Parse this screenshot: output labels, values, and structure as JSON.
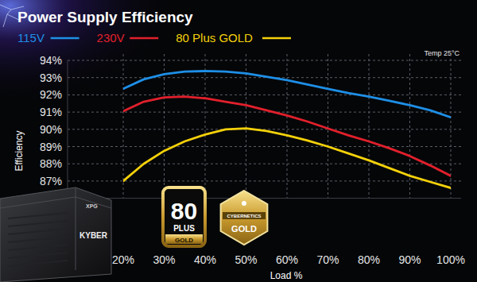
{
  "chart_data": {
    "type": "line",
    "title": "Power Supply Efficiency",
    "x_label": "Load %",
    "y_label": "Efficiency",
    "annotations": [
      "Temp 25°C",
      "KYBER",
      "XPG",
      "80",
      "PLUS",
      "GOLD",
      "CYBERNETICS",
      "GOLD"
    ],
    "x": [
      20,
      25,
      30,
      35,
      40,
      45,
      50,
      55,
      60,
      65,
      70,
      75,
      80,
      85,
      90,
      95,
      100
    ],
    "series": [
      {
        "name": "115V",
        "color": "#1e8fe6",
        "values": [
          92.35,
          92.9,
          93.2,
          93.35,
          93.38,
          93.35,
          93.25,
          93.05,
          92.85,
          92.6,
          92.35,
          92.1,
          91.9,
          91.65,
          91.4,
          91.1,
          90.7
        ]
      },
      {
        "name": "230V",
        "color": "#e2202c",
        "values": [
          91.05,
          91.6,
          91.85,
          91.9,
          91.8,
          91.6,
          91.4,
          91.1,
          90.8,
          90.45,
          90.05,
          89.65,
          89.3,
          88.9,
          88.45,
          87.9,
          87.3
        ]
      },
      {
        "name": "80 Plus GOLD",
        "color": "#f4d10a",
        "values": [
          87.0,
          88.0,
          88.75,
          89.3,
          89.7,
          90.0,
          90.05,
          89.9,
          89.65,
          89.35,
          89.0,
          88.6,
          88.2,
          87.75,
          87.3,
          86.95,
          86.6
        ]
      }
    ],
    "xlim": [
      20,
      100
    ],
    "xticks": [
      {
        "value": 20,
        "label": "20%"
      },
      {
        "value": 30,
        "label": "30%"
      },
      {
        "value": 40,
        "label": "40%"
      },
      {
        "value": 50,
        "label": "50%"
      },
      {
        "value": 60,
        "label": "60%"
      },
      {
        "value": 70,
        "label": "70%"
      },
      {
        "value": 80,
        "label": "80%"
      },
      {
        "value": 90,
        "label": "90%"
      },
      {
        "value": 100,
        "label": "100%"
      }
    ],
    "ylim": [
      86,
      94
    ],
    "yticks": [
      {
        "value": 87,
        "label": "87%"
      },
      {
        "value": 88,
        "label": "88%"
      },
      {
        "value": 89,
        "label": "89%"
      },
      {
        "value": 90,
        "label": "90%"
      },
      {
        "value": 91,
        "label": "91%"
      },
      {
        "value": 92,
        "label": "92%"
      },
      {
        "value": 93,
        "label": "93%"
      },
      {
        "value": 94,
        "label": "94%"
      }
    ],
    "grid": true,
    "legend": "top"
  }
}
